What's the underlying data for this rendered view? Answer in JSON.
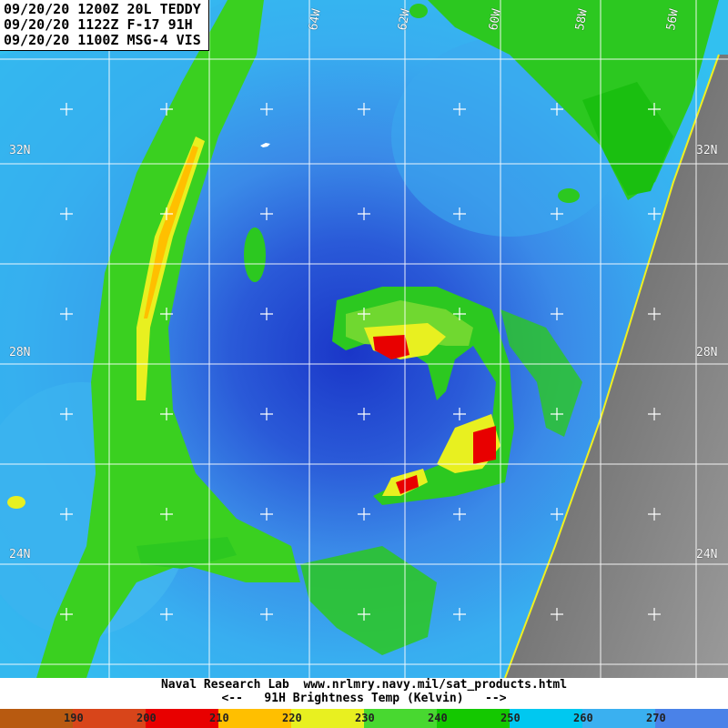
{
  "header": {
    "lines": [
      "09/20/20 1200Z 20L TEDDY",
      "09/20/20 1122Z F-17 91H",
      "09/20/20 1100Z MSG-4 VIS"
    ]
  },
  "grid": {
    "lat_labels": [
      "32N",
      "28N",
      "24N"
    ],
    "lon_labels": [
      "64W",
      "62W",
      "60W",
      "58W",
      "56W"
    ]
  },
  "footer": {
    "credit": "Naval Research Lab  www.nrlmry.navy.mil/sat_products.html",
    "legend_caption": "<--   91H Brightness Temp (Kelvin)   -->"
  },
  "colorbar": {
    "ticks": [
      "190",
      "200",
      "210",
      "220",
      "230",
      "240",
      "250",
      "260",
      "270"
    ],
    "colors": [
      "#b85a10",
      "#d8451a",
      "#e80000",
      "#ffbf00",
      "#e8f020",
      "#48d830",
      "#14c800",
      "#00c8f0",
      "#3ab0f0",
      "#4a82e8"
    ]
  }
}
